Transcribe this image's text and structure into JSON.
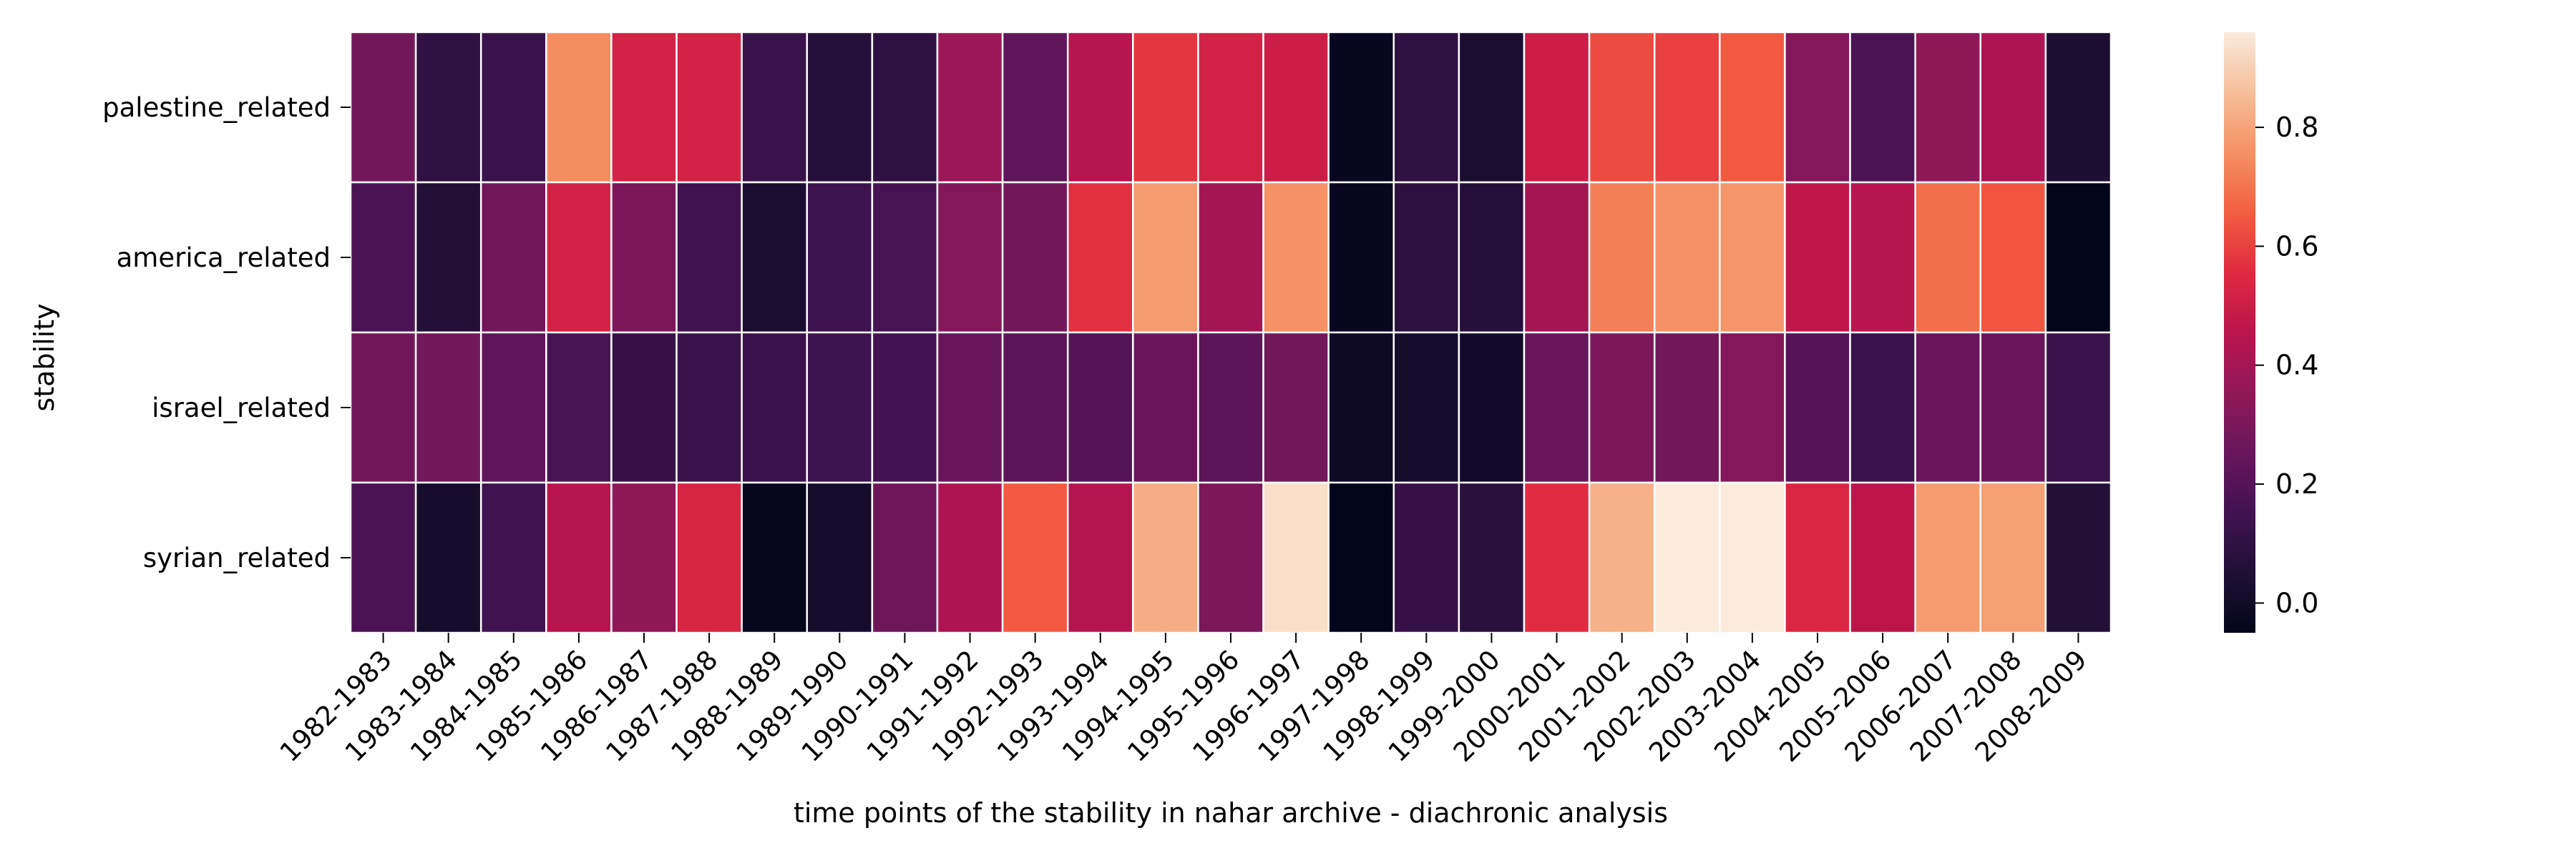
{
  "chart_data": {
    "type": "heatmap",
    "title": "",
    "xlabel": "time points of the stability in nahar archive - diachronic analysis",
    "ylabel": "stability",
    "rows": [
      "palestine_related",
      "america_related",
      "israel_related",
      "syrian_related"
    ],
    "columns": [
      "1982-1983",
      "1983-1984",
      "1984-1985",
      "1985-1986",
      "1986-1987",
      "1987-1988",
      "1988-1989",
      "1989-1990",
      "1990-1991",
      "1991-1992",
      "1992-1993",
      "1993-1994",
      "1994-1995",
      "1995-1996",
      "1996-1997",
      "1997-1998",
      "1998-1999",
      "1999-2000",
      "2000-2001",
      "2001-2002",
      "2002-2003",
      "2003-2004",
      "2004-2005",
      "2005-2006",
      "2006-2007",
      "2007-2008",
      "2008-2009"
    ],
    "values": [
      [
        0.28,
        0.1,
        0.13,
        0.75,
        0.52,
        0.52,
        0.13,
        0.07,
        0.1,
        0.38,
        0.23,
        0.45,
        0.58,
        0.52,
        0.5,
        -0.03,
        0.1,
        0.03,
        0.5,
        0.62,
        0.6,
        0.65,
        0.32,
        0.18,
        0.35,
        0.42,
        0.04
      ],
      [
        0.18,
        0.06,
        0.28,
        0.52,
        0.3,
        0.15,
        0.03,
        0.14,
        0.17,
        0.32,
        0.28,
        0.57,
        0.78,
        0.4,
        0.76,
        -0.03,
        0.09,
        0.07,
        0.4,
        0.72,
        0.76,
        0.77,
        0.47,
        0.45,
        0.69,
        0.64,
        -0.05
      ],
      [
        0.28,
        0.28,
        0.23,
        0.17,
        0.12,
        0.13,
        0.13,
        0.14,
        0.16,
        0.25,
        0.22,
        0.2,
        0.26,
        0.22,
        0.28,
        -0.01,
        0.02,
        0.0,
        0.25,
        0.3,
        0.28,
        0.32,
        0.2,
        0.13,
        0.25,
        0.26,
        0.13
      ],
      [
        0.18,
        0.02,
        0.15,
        0.45,
        0.35,
        0.53,
        -0.04,
        0.02,
        0.27,
        0.42,
        0.65,
        0.44,
        0.82,
        0.3,
        0.93,
        -0.05,
        0.12,
        0.08,
        0.56,
        0.83,
        0.96,
        0.96,
        0.54,
        0.46,
        0.78,
        0.79,
        0.06
      ]
    ],
    "vmin": -0.05,
    "vmax": 0.96,
    "colormap": "rocket",
    "colorbar_ticks": [
      0.0,
      0.2,
      0.4,
      0.6,
      0.8
    ],
    "colorbar_tick_labels": [
      "0.0",
      "0.2",
      "0.4",
      "0.6",
      "0.8"
    ],
    "grid": false,
    "cell_borders": true
  }
}
